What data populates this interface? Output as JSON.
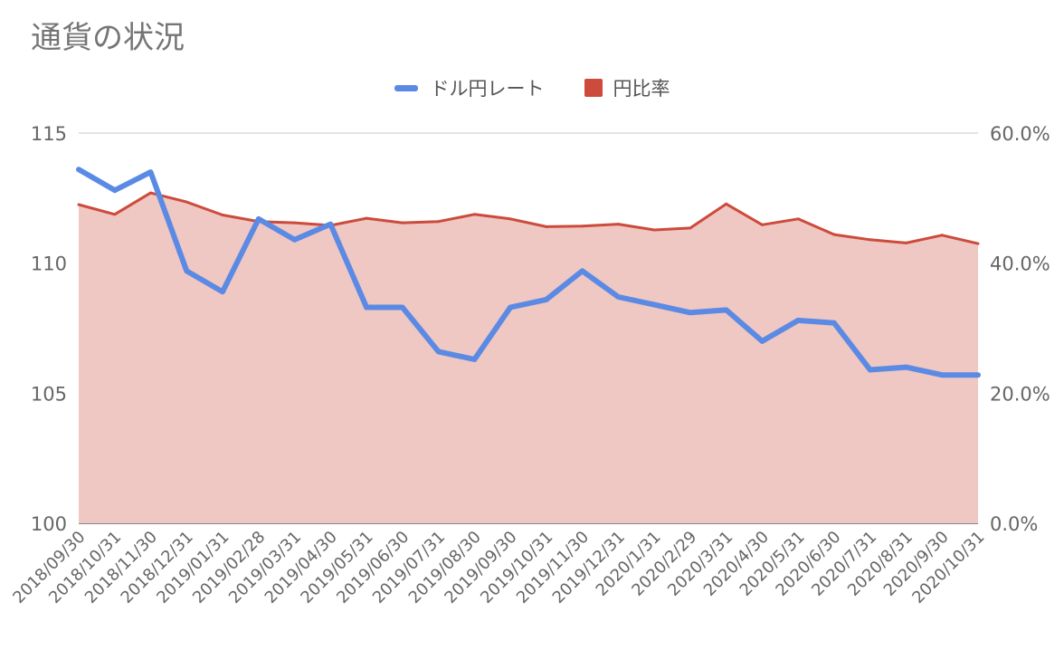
{
  "title": "通貨の状況",
  "legend": {
    "usd_label": "ドル円レート",
    "ratio_label": "円比率"
  },
  "colors": {
    "usd_line": "#5b8ae4",
    "ratio_line": "#cc4b3c",
    "ratio_fill": "#efc7c3",
    "grid": "#d4d4d4",
    "baseline": "#444444",
    "title_text": "#757575",
    "tick_text": "#666666"
  },
  "chart_data": {
    "type": "line",
    "title": "通貨の状況",
    "legend_position": "top",
    "grid": true,
    "categories": [
      "2018/09/30",
      "2018/10/31",
      "2018/11/30",
      "2018/12/31",
      "2019/01/31",
      "2019/02/28",
      "2019/03/31",
      "2019/04/30",
      "2019/05/31",
      "2019/06/30",
      "2019/07/31",
      "2019/08/30",
      "2019/09/30",
      "2019/10/31",
      "2019/11/30",
      "2019/12/31",
      "2020/1/31",
      "2020/2/29",
      "2020/3/31",
      "2020/4/30",
      "2020/5/31",
      "2020/6/30",
      "2020/7/31",
      "2020/8/31",
      "2020/9/30",
      "2020/10/31"
    ],
    "y_left": {
      "ticks": [
        "100",
        "105",
        "110",
        "115"
      ],
      "range": [
        100,
        115
      ]
    },
    "y_right": {
      "ticks": [
        "0.0%",
        "20.0%",
        "40.0%",
        "60.0%"
      ],
      "range": [
        0,
        60
      ]
    },
    "series": [
      {
        "name": "ドル円レート",
        "type": "line",
        "axis": "left",
        "values": [
          113.6,
          112.8,
          113.5,
          109.7,
          108.9,
          111.7,
          110.9,
          111.5,
          108.3,
          108.3,
          106.6,
          106.3,
          108.3,
          108.6,
          109.7,
          108.7,
          108.4,
          108.1,
          108.2,
          107.0,
          107.8,
          107.7,
          105.9,
          106.0,
          105.7,
          105.7
        ]
      },
      {
        "name": "円比率",
        "type": "area",
        "axis": "right",
        "values": [
          49.0,
          47.5,
          50.8,
          49.4,
          47.4,
          46.4,
          46.2,
          45.8,
          46.9,
          46.2,
          46.4,
          47.5,
          46.8,
          45.6,
          45.7,
          46.0,
          45.1,
          45.4,
          49.1,
          45.9,
          46.8,
          44.4,
          43.6,
          43.1,
          44.3,
          43.0
        ]
      }
    ]
  }
}
